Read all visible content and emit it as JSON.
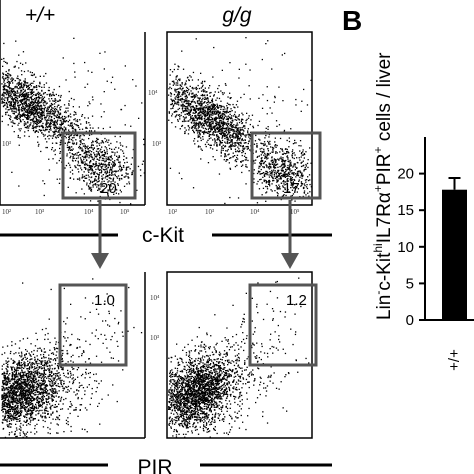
{
  "figure": {
    "genotypes": [
      "+/+",
      "g/g"
    ],
    "panel_b_letter": "B",
    "ckit_axis_label": "c-Kit",
    "pir_axis_label": "PIR"
  },
  "scatter_panels": [
    {
      "id": "top-wt",
      "genotype": "+/+",
      "x_marker": "c-Kit",
      "gate_percent": "20"
    },
    {
      "id": "top-gg",
      "genotype": "g/g",
      "x_marker": "c-Kit",
      "gate_percent": "17"
    },
    {
      "id": "bot-wt",
      "genotype": "+/+",
      "x_marker": "PIR",
      "gate_percent": "1.0"
    },
    {
      "id": "bot-gg",
      "genotype": "g/g",
      "x_marker": "PIR",
      "gate_percent": "1.2"
    }
  ],
  "tick_labels": {
    "pow2": "10²",
    "pow3": "10³",
    "pow4": "10⁴",
    "pow5": "10⁵"
  },
  "chart_data": {
    "type": "bar",
    "categories": [
      "+/+"
    ],
    "values": [
      17.8
    ],
    "error": [
      1.6
    ],
    "ylim": [
      0,
      25
    ],
    "yticks": [
      "0",
      "5",
      "10",
      "15",
      "20"
    ],
    "ylabel_parts": {
      "p1": "Lin",
      "p1_sup": "-",
      "p2": "c-Kit",
      "p2_sup": "hi",
      "p3": "IL7Rα",
      "p3_sup": "+",
      "p4": "PIR",
      "p4_sup": "+",
      "p5": " cells / liver"
    },
    "bar_color": "#000000"
  }
}
